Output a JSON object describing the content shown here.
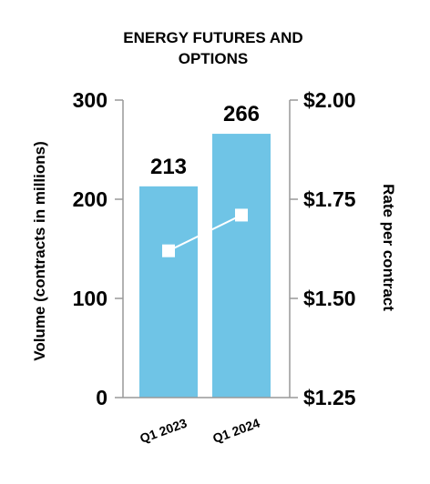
{
  "chart_data": {
    "type": "bar",
    "title_lines": [
      "ENERGY FUTURES AND",
      "OPTIONS"
    ],
    "categories": [
      "Q1 2023",
      "Q1 2024"
    ],
    "series": [
      {
        "axis": "left",
        "kind": "bar",
        "values": [
          213,
          266
        ],
        "data_labels": [
          "213",
          "266"
        ]
      },
      {
        "axis": "right",
        "kind": "line",
        "values": [
          1.62,
          1.71
        ]
      }
    ],
    "ylabel_left": "Volume (contracts in millions)",
    "ylabel_right": "Rate per contract",
    "ylim_left": [
      0,
      300
    ],
    "ylim_right": [
      1.25,
      2.0
    ],
    "left_ticks": [
      {
        "value": 0,
        "label": "0"
      },
      {
        "value": 100,
        "label": "100"
      },
      {
        "value": 200,
        "label": "200"
      },
      {
        "value": 300,
        "label": "300"
      }
    ],
    "right_ticks": [
      {
        "value": 1.25,
        "label": "$1.25"
      },
      {
        "value": 1.5,
        "label": "$1.50"
      },
      {
        "value": 1.75,
        "label": "$1.75"
      },
      {
        "value": 2.0,
        "label": "$2.00"
      }
    ],
    "grid": false,
    "colors": {
      "bar": "#6fc4e6",
      "line": "#ffffff",
      "marker": "#ffffff",
      "axis": "#999999",
      "text": "#000000"
    }
  }
}
